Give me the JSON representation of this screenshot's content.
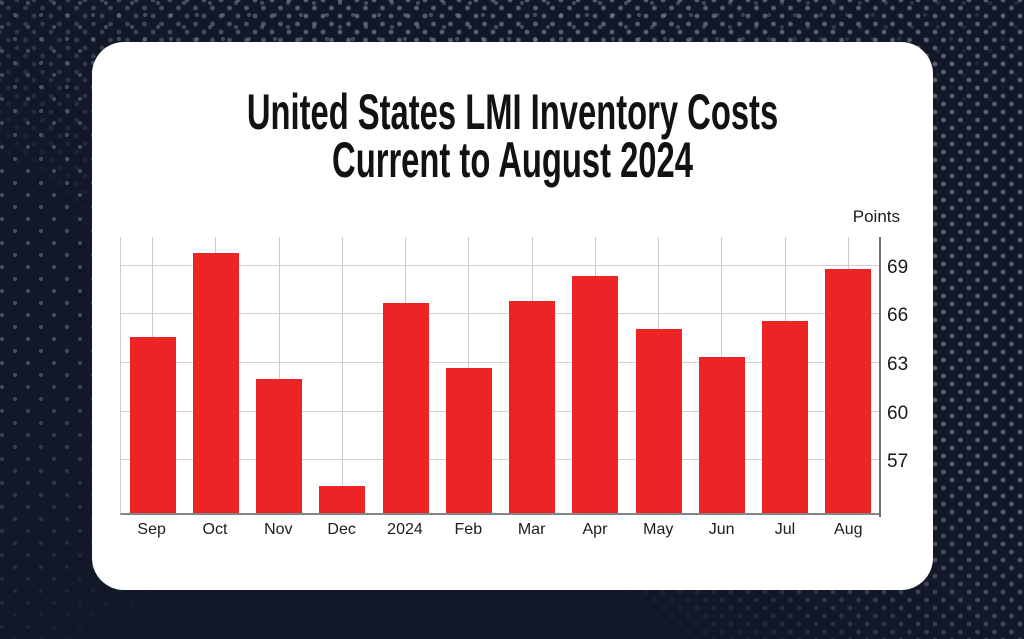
{
  "title": {
    "line1": "United States LMI Inventory Costs",
    "line2": "Current to August 2024"
  },
  "chart_data": {
    "type": "bar",
    "title": "United States LMI Inventory Costs — Current to August 2024",
    "categories": [
      "Sep",
      "Oct",
      "Nov",
      "Dec",
      "2024",
      "Feb",
      "Mar",
      "Apr",
      "May",
      "Jun",
      "Jul",
      "Aug"
    ],
    "values": [
      64.6,
      69.8,
      62.0,
      55.4,
      66.7,
      62.7,
      66.8,
      68.4,
      65.1,
      63.4,
      65.6,
      68.8
    ],
    "xlabel": "",
    "ylabel": "Points",
    "yticks": [
      57,
      60,
      63,
      66,
      69
    ],
    "ylim": [
      53.75,
      70.9
    ],
    "grid": true,
    "axis_side": "right",
    "legend": "none"
  },
  "colors": {
    "background": "#131829",
    "card": "#ffffff",
    "bar": "#ED2426",
    "grid": "#d2d2d2",
    "axis": "#6e6e6e",
    "text": "#1a1a1a"
  }
}
